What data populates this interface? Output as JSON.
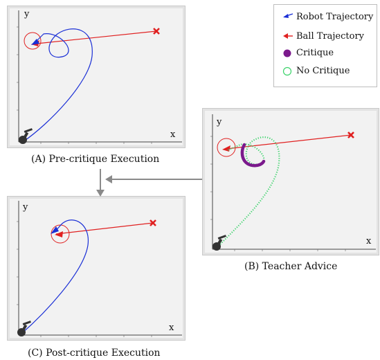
{
  "legend": {
    "robot": "Robot Trajectory",
    "ball": "Ball Trajectory",
    "critique": "Critique",
    "no_critique": "No Critique"
  },
  "panels": {
    "a": {
      "caption": "(A) Pre-critique Execution",
      "x_label": "x",
      "y_label": "y"
    },
    "b": {
      "caption": "(B) Teacher Advice",
      "x_label": "x",
      "y_label": "y"
    },
    "c": {
      "caption": "(C) Post-critique Execution",
      "x_label": "x",
      "y_label": "y"
    }
  },
  "colors": {
    "robot": "#1a2fd6",
    "ball": "#e02020",
    "critique": "#7b1a8c",
    "no_critique": "#3bd36a",
    "panel_bg": "#f2f2f2",
    "connector": "#8a8a8a"
  }
}
